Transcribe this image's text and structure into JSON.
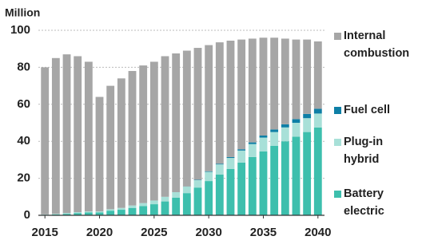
{
  "chart_data": {
    "type": "stacked-bar",
    "y_label": "Million",
    "x": [
      2015,
      2016,
      2017,
      2018,
      2019,
      2020,
      2021,
      2022,
      2023,
      2024,
      2025,
      2026,
      2027,
      2028,
      2029,
      2030,
      2031,
      2032,
      2033,
      2034,
      2035,
      2036,
      2037,
      2038,
      2039,
      2040
    ],
    "xlim": [
      2014.4,
      2040.6
    ],
    "xticks": [
      2015,
      2020,
      2025,
      2030,
      2035,
      2040
    ],
    "ylim": [
      0,
      100
    ],
    "yticks": [
      0,
      20,
      40,
      60,
      80,
      100
    ],
    "grid": true,
    "series": [
      {
        "name": "Battery electric",
        "color": "#3dbfad",
        "values": [
          0.3,
          0.5,
          0.8,
          1.2,
          1.5,
          1.5,
          2.5,
          3,
          4,
          5,
          6,
          7.5,
          9.5,
          12,
          15,
          18.5,
          22,
          25,
          28.5,
          31.5,
          34.5,
          37.5,
          40,
          42.5,
          45,
          47.5
        ]
      },
      {
        "name": "Plug-in hybrid",
        "color": "#a8e0d8",
        "values": [
          0.2,
          0.3,
          0.4,
          0.5,
          0.6,
          0.6,
          0.8,
          1,
          1.3,
          1.6,
          2,
          2.5,
          3,
          3.5,
          4,
          5,
          5.5,
          6,
          6.5,
          7,
          7.5,
          7.5,
          7.5,
          7.5,
          7.5,
          7.5
        ]
      },
      {
        "name": "Fuel cell",
        "color": "#0e7fa6",
        "values": [
          0,
          0,
          0,
          0,
          0,
          0,
          0,
          0,
          0,
          0,
          0,
          0,
          0,
          0.1,
          0.2,
          0.3,
          0.4,
          0.5,
          0.7,
          0.9,
          1.1,
          1.4,
          1.7,
          2,
          2.3,
          2.6
        ]
      },
      {
        "name": "Internal combustion",
        "color": "#a6a6a6",
        "values": [
          79.5,
          84.2,
          85.8,
          84.3,
          80.9,
          61.9,
          66.7,
          70,
          72.7,
          74.4,
          75,
          76,
          75,
          73.4,
          71.3,
          68.2,
          65.6,
          62.9,
          59.3,
          56.1,
          52.9,
          49.6,
          46.3,
          43,
          40.2,
          36.4
        ]
      }
    ]
  }
}
